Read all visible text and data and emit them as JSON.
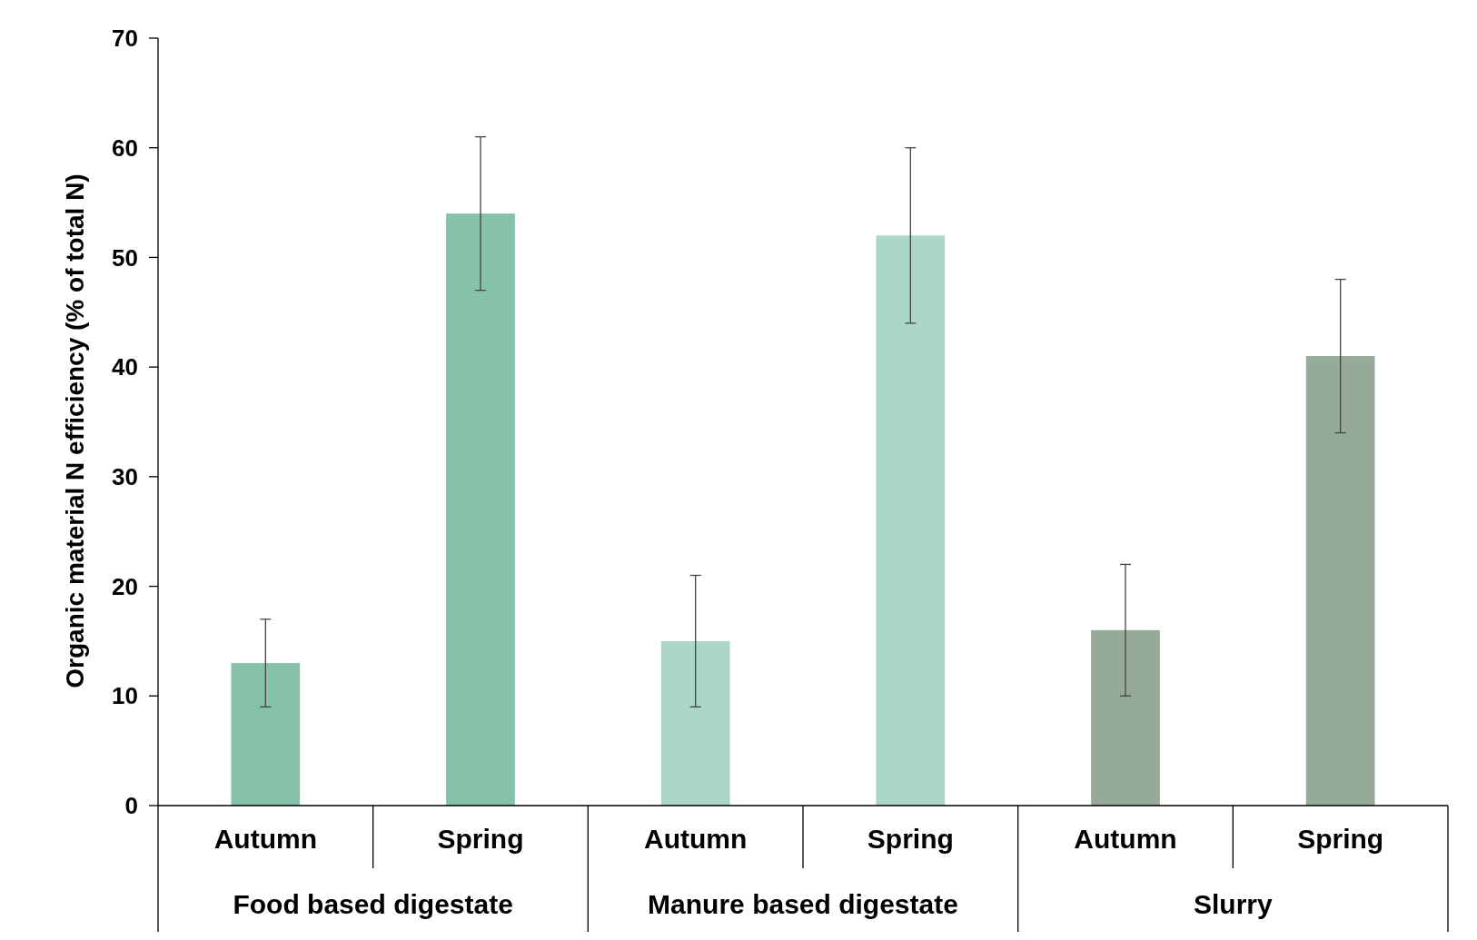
{
  "chart_data": {
    "type": "bar",
    "ylabel": "Organic material N efficiency (% of total N)",
    "categories": [
      "Autumn",
      "Spring",
      "Autumn",
      "Spring",
      "Autumn",
      "Spring"
    ],
    "values": [
      13,
      54,
      15,
      52,
      16,
      41
    ],
    "colors": [
      "#85c2a9",
      "#85c2a9",
      "#acd6c5",
      "#acd6c5",
      "#95aa98",
      "#95aa98"
    ],
    "errors": [
      [
        9,
        17
      ],
      [
        47,
        61
      ],
      [
        9,
        21
      ],
      [
        44,
        60
      ],
      [
        10,
        22
      ],
      [
        34,
        48
      ]
    ],
    "annotations": [
      "Food based digestate",
      "Manure based digestate",
      "Slurry"
    ],
    "ylim": [
      0,
      70
    ],
    "yticks": [
      0,
      10,
      20,
      30,
      40,
      50,
      60,
      70
    ]
  }
}
